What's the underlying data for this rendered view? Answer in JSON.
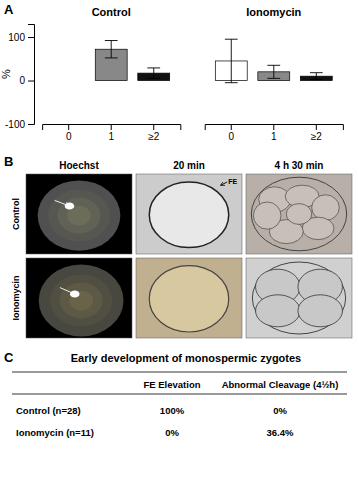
{
  "chart_data": [
    {
      "type": "bar",
      "annotations": [
        "A"
      ],
      "ylabel": "%",
      "ylim": [
        -100,
        130
      ],
      "yticks": [
        -100,
        0,
        100
      ],
      "series": [
        {
          "name": "Control",
          "categories": [
            "0",
            "1",
            "≥2"
          ],
          "values": [
            0,
            72,
            17
          ],
          "errors": [
            0,
            20,
            12
          ],
          "colors": [
            "#aaaaaa",
            "#888888",
            "#111111"
          ]
        },
        {
          "name": "Ionomycin",
          "categories": [
            "0",
            "1",
            "≥2"
          ],
          "values": [
            45,
            20,
            10
          ],
          "errors": [
            50,
            15,
            8
          ],
          "colors": [
            "#ffffff",
            "#888888",
            "#111111"
          ]
        }
      ]
    },
    {
      "type": "image_grid",
      "annotations": [
        "B",
        "FE"
      ],
      "columns": [
        "Hoechst",
        "20 min",
        "4 h 30 min"
      ],
      "rows": [
        "Control",
        "Ionomycin"
      ],
      "colors": [
        [
          "#000000",
          "#cccccc",
          "#b8b0a8"
        ],
        [
          "#000000",
          "#c0b090",
          "#d0d0d0"
        ]
      ]
    },
    {
      "type": "table",
      "annotations": [
        "C"
      ],
      "title": "Early development of monospermic zygotes",
      "columns": [
        "FE Elevation",
        "Abnormal Cleavage (4½h)"
      ],
      "rows": [
        [
          "Control (n=28)",
          "100%",
          "0%"
        ],
        [
          "Ionomycin (n=11)",
          "0%",
          "36.4%"
        ]
      ]
    }
  ]
}
